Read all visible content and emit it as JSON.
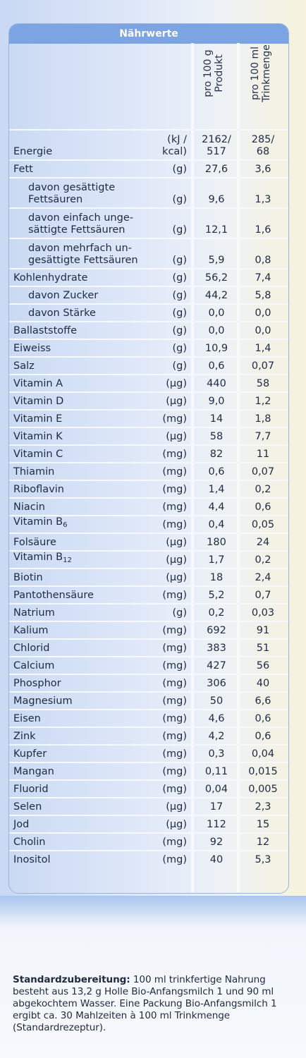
{
  "header": {
    "title": "Nährwerte"
  },
  "columns": [
    {
      "line1": "pro 100 g",
      "line2": "Produkt"
    },
    {
      "line1": "pro 100 ml",
      "line2": "Trinkmenge"
    }
  ],
  "rows": [
    {
      "label": "Energie",
      "unit": "(kJ /\nkcal)",
      "v1": "2162/\n517",
      "v2": "285/\n68"
    },
    {
      "label": "Fett",
      "unit": "(g)",
      "v1": "27,6",
      "v2": "3,6"
    },
    {
      "label": "davon gesättigte\nFettsäuren",
      "unit": "(g)",
      "v1": "9,6",
      "v2": "1,3"
    },
    {
      "label": "davon einfach unge-\nsättigte Fettsäuren",
      "unit": "(g)",
      "v1": "12,1",
      "v2": "1,6"
    },
    {
      "label": "davon mehrfach un-\ngesättigte Fettsäuren",
      "unit": "(g)",
      "v1": "5,9",
      "v2": "0,8"
    },
    {
      "label": "Kohlenhydrate",
      "unit": "(g)",
      "v1": "56,2",
      "v2": "7,4"
    },
    {
      "label": "davon Zucker",
      "unit": "(g)",
      "v1": "44,2",
      "v2": "5,8"
    },
    {
      "label": "davon Stärke",
      "unit": "(g)",
      "v1": "0,0",
      "v2": "0,0"
    },
    {
      "label": "Ballaststoffe",
      "unit": "(g)",
      "v1": "0,0",
      "v2": "0,0"
    },
    {
      "label": "Eiweiss",
      "unit": "(g)",
      "v1": "10,9",
      "v2": "1,4"
    },
    {
      "label": "Salz",
      "unit": "(g)",
      "v1": "0,6",
      "v2": "0,07"
    },
    {
      "label": "Vitamin A",
      "unit": "(µg)",
      "v1": "440",
      "v2": "58"
    },
    {
      "label": "Vitamin D",
      "unit": "(µg)",
      "v1": "9,0",
      "v2": "1,2"
    },
    {
      "label": "Vitamin E",
      "unit": "(mg)",
      "v1": "14",
      "v2": "1,8"
    },
    {
      "label": "Vitamin K",
      "unit": "(µg)",
      "v1": "58",
      "v2": "7,7"
    },
    {
      "label": "Vitamin C",
      "unit": "(mg)",
      "v1": "82",
      "v2": "11"
    },
    {
      "label": "Thiamin",
      "unit": "(mg)",
      "v1": "0,6",
      "v2": "0,07"
    },
    {
      "label": "Riboflavin",
      "unit": "(mg)",
      "v1": "1,4",
      "v2": "0,2"
    },
    {
      "label": "Niacin",
      "unit": "(mg)",
      "v1": "4,4",
      "v2": "0,6"
    },
    {
      "label": "Vitamin B",
      "sub": "6",
      "unit": "(mg)",
      "v1": "0,4",
      "v2": "0,05"
    },
    {
      "label": "Folsäure",
      "unit": "(µg)",
      "v1": "180",
      "v2": "24"
    },
    {
      "label": "Vitamin B",
      "sub": "12",
      "unit": "(µg)",
      "v1": "1,7",
      "v2": "0,2"
    },
    {
      "label": "Biotin",
      "unit": "(µg)",
      "v1": "18",
      "v2": "2,4"
    },
    {
      "label": "Pantothensäure",
      "unit": "(mg)",
      "v1": "5,2",
      "v2": "0,7"
    },
    {
      "label": "Natrium",
      "unit": "(g)",
      "v1": "0,2",
      "v2": "0,03"
    },
    {
      "label": "Kalium",
      "unit": "(mg)",
      "v1": "692",
      "v2": "91"
    },
    {
      "label": "Chlorid",
      "unit": "(mg)",
      "v1": "383",
      "v2": "51"
    },
    {
      "label": "Calcium",
      "unit": "(mg)",
      "v1": "427",
      "v2": "56"
    },
    {
      "label": "Phosphor",
      "unit": "(mg)",
      "v1": "306",
      "v2": "40"
    },
    {
      "label": "Magnesium",
      "unit": "(mg)",
      "v1": "50",
      "v2": "6,6"
    },
    {
      "label": "Eisen",
      "unit": "(mg)",
      "v1": "4,6",
      "v2": "0,6"
    },
    {
      "label": "Zink",
      "unit": "(mg)",
      "v1": "4,2",
      "v2": "0,6"
    },
    {
      "label": "Kupfer",
      "unit": "(mg)",
      "v1": "0,3",
      "v2": "0,04"
    },
    {
      "label": "Mangan",
      "unit": "(mg)",
      "v1": "0,11",
      "v2": "0,015"
    },
    {
      "label": "Fluorid",
      "unit": "(mg)",
      "v1": "0,04",
      "v2": "0,005"
    },
    {
      "label": "Selen",
      "unit": "(µg)",
      "v1": "17",
      "v2": "2,3"
    },
    {
      "label": "Jod",
      "unit": "(µg)",
      "v1": "112",
      "v2": "15"
    },
    {
      "label": "Cholin",
      "unit": "(mg)",
      "v1": "92",
      "v2": "12"
    },
    {
      "label": "Inositol",
      "unit": "(mg)",
      "v1": "40",
      "v2": "5,3"
    }
  ],
  "footer": {
    "bold": "Standardzubereitung:",
    "text": " 100 ml trinkfertige Nahrung besteht aus 13,2 g Holle Bio-Anfangsmilch 1 und 90 ml abgekochtem Wasser. Eine Packung Bio-Anfangsmilch 1 ergibt ca. 30 Mahlzeiten à 100 ml Trinkmenge (Standardrezeptur)."
  }
}
